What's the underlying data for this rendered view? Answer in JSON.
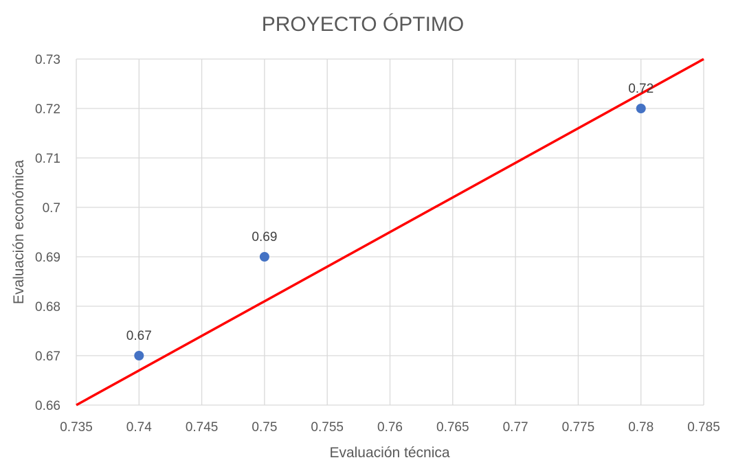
{
  "chart_data": {
    "type": "scatter",
    "title": "PROYECTO ÓPTIMO",
    "xlabel": "Evaluación técnica",
    "ylabel": "Evaluación económica",
    "xlim": [
      0.735,
      0.785
    ],
    "ylim": [
      0.66,
      0.73
    ],
    "x_ticks": [
      "0.735",
      "0.74",
      "0.745",
      "0.75",
      "0.755",
      "0.76",
      "0.765",
      "0.77",
      "0.775",
      "0.78",
      "0.785"
    ],
    "y_ticks": [
      "0.66",
      "0.67",
      "0.68",
      "0.69",
      "0.7",
      "0.71",
      "0.72",
      "0.73"
    ],
    "grid": true,
    "series": [
      {
        "points": [
          {
            "x": 0.74,
            "y": 0.67,
            "label": "0.67"
          },
          {
            "x": 0.75,
            "y": 0.69,
            "label": "0.69"
          },
          {
            "x": 0.78,
            "y": 0.72,
            "label": "0.72"
          }
        ],
        "color": "#4472C4"
      }
    ],
    "reference_line": {
      "from": {
        "x": 0.735,
        "y": 0.66
      },
      "to": {
        "x": 0.785,
        "y": 0.73
      },
      "color": "#FF0000"
    },
    "grid_color": "#D9D9D9"
  }
}
